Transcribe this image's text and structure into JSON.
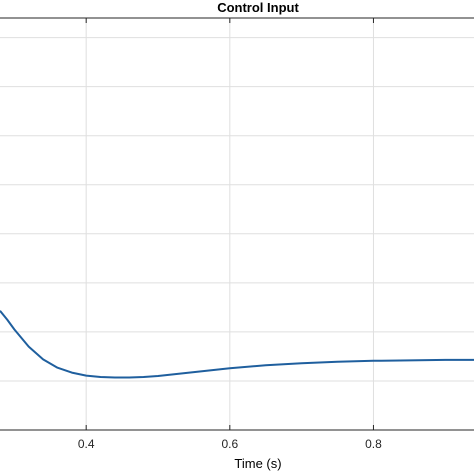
{
  "chart_data": {
    "type": "line",
    "title": "Control Input",
    "xlabel": "Time (s)",
    "ylabel": "",
    "xlim": [
      0.28,
      0.94
    ],
    "ylim": [
      0,
      8.4
    ],
    "x_ticks": [
      0.4,
      0.6,
      0.8
    ],
    "x_tick_labels": [
      "0.4",
      "0.6",
      "0.8"
    ],
    "y_gridlines": [
      1,
      2,
      3,
      4,
      5,
      6,
      7,
      8
    ],
    "grid": true,
    "series": [
      {
        "color": "#1f5f9e",
        "x": [
          0.28,
          0.29,
          0.3,
          0.32,
          0.34,
          0.36,
          0.38,
          0.4,
          0.42,
          0.44,
          0.46,
          0.48,
          0.5,
          0.55,
          0.6,
          0.65,
          0.7,
          0.75,
          0.8,
          0.85,
          0.9,
          0.94
        ],
        "y": [
          2.43,
          2.25,
          2.05,
          1.7,
          1.44,
          1.27,
          1.17,
          1.11,
          1.08,
          1.07,
          1.07,
          1.08,
          1.1,
          1.18,
          1.26,
          1.32,
          1.36,
          1.39,
          1.41,
          1.42,
          1.43,
          1.43
        ]
      }
    ]
  }
}
